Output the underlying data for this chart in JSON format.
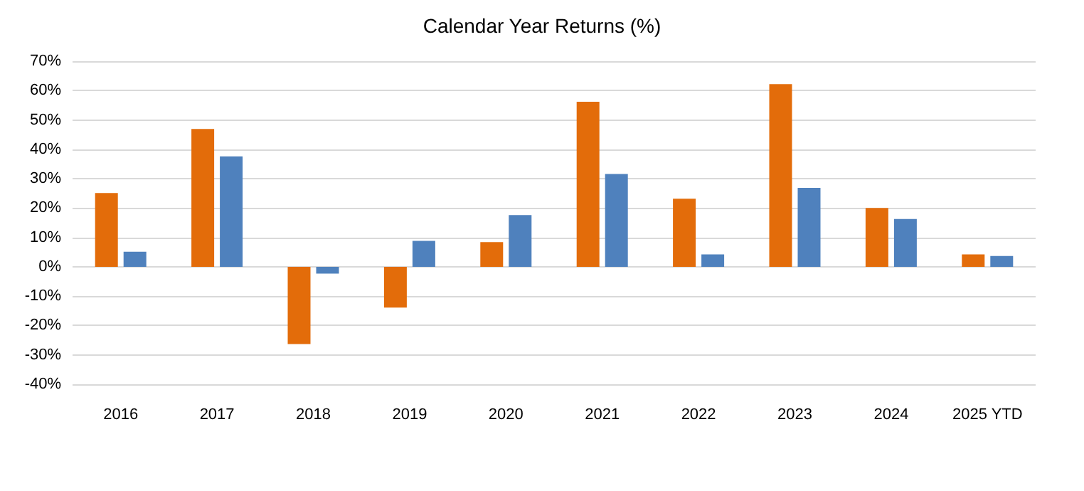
{
  "chart_data": {
    "type": "bar",
    "title": "Calendar Year Returns (%)",
    "categories": [
      "2016",
      "2017",
      "2018",
      "2019",
      "2020",
      "2021",
      "2022",
      "2023",
      "2024",
      "2025 YTD"
    ],
    "series": [
      {
        "color": "#e36c0a",
        "values": [
          25.1,
          46.9,
          -26.3,
          -13.9,
          8.4,
          56.2,
          23.2,
          62.2,
          20.0,
          4.2
        ]
      },
      {
        "color": "#4f81bd",
        "values": [
          5.1,
          37.6,
          -2.3,
          8.8,
          17.6,
          31.6,
          4.2,
          26.9,
          16.3,
          3.7
        ]
      }
    ],
    "ylim": [
      -40,
      70
    ],
    "yticks": [
      {
        "value": -40,
        "label": "-40%"
      },
      {
        "value": -30,
        "label": "-30%"
      },
      {
        "value": -20,
        "label": "-20%"
      },
      {
        "value": -10,
        "label": "-10%"
      },
      {
        "value": 0,
        "label": "0%"
      },
      {
        "value": 10,
        "label": "10%"
      },
      {
        "value": 20,
        "label": "20%"
      },
      {
        "value": 30,
        "label": "30%"
      },
      {
        "value": 40,
        "label": "40%"
      },
      {
        "value": 50,
        "label": "50%"
      },
      {
        "value": 60,
        "label": "60%"
      },
      {
        "value": 70,
        "label": "70%"
      }
    ],
    "grid": "y"
  }
}
